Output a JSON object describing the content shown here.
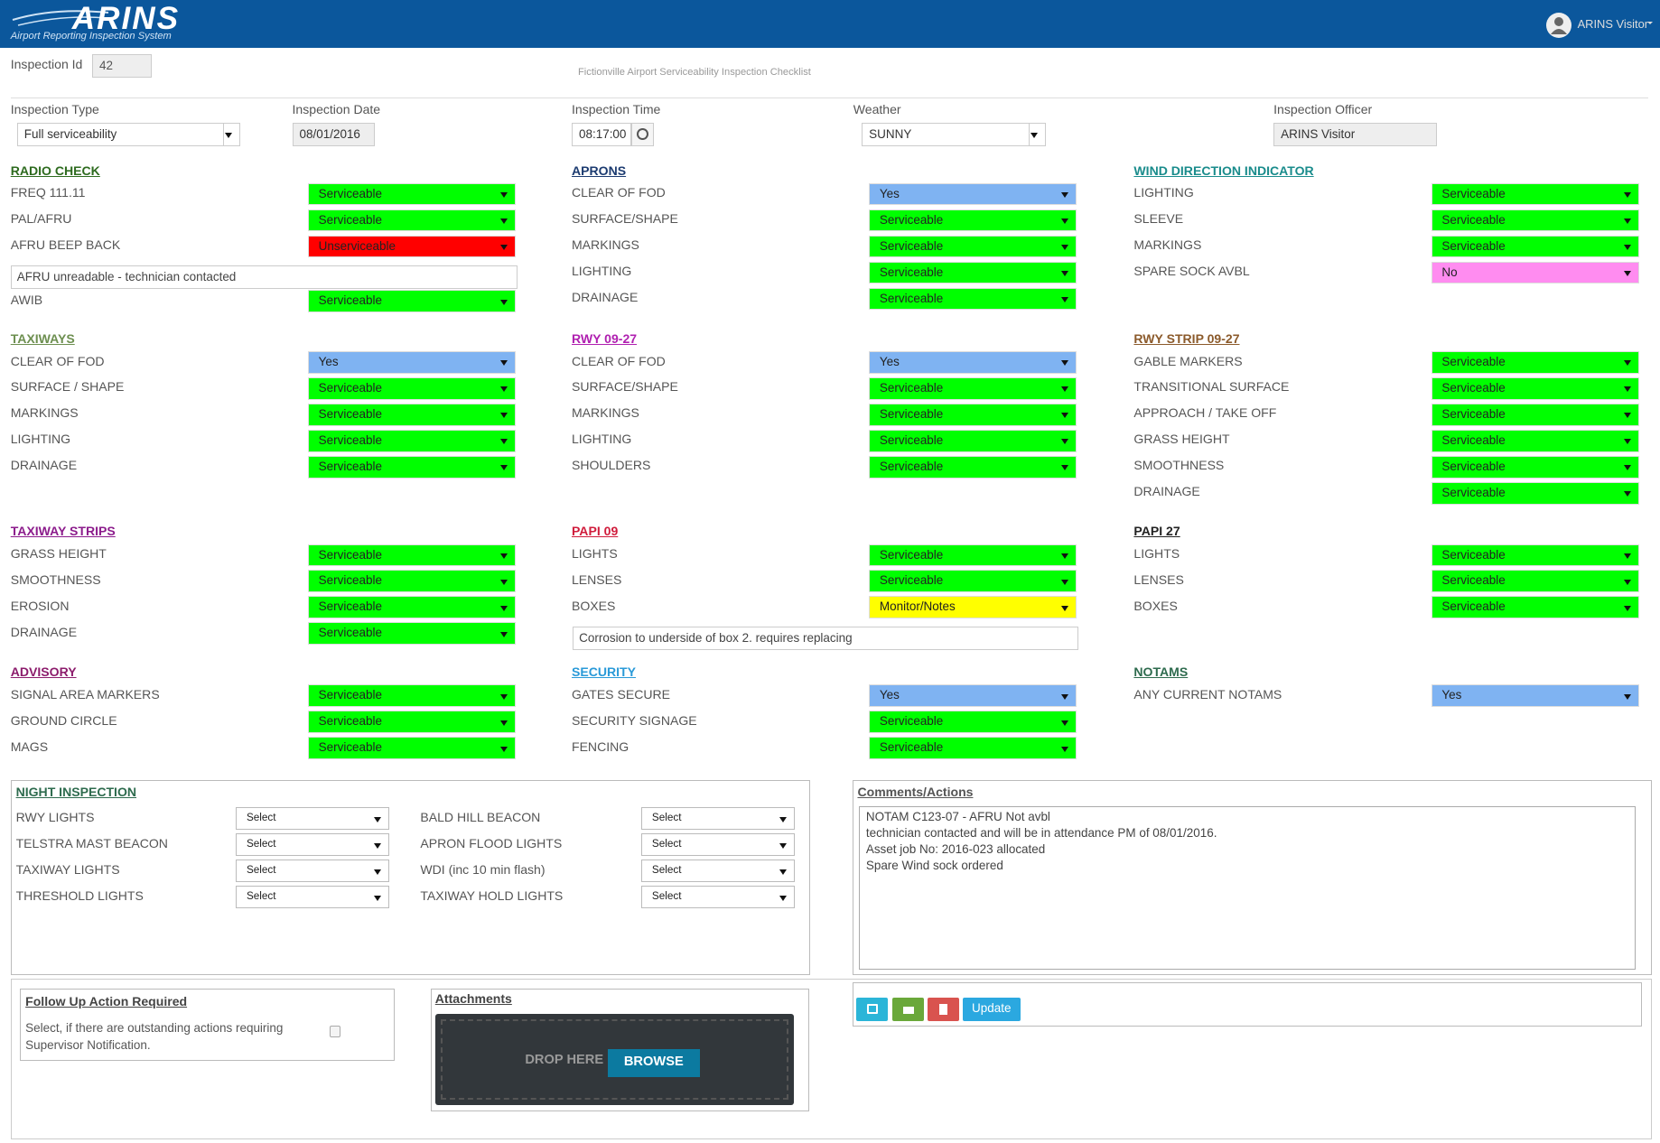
{
  "header": {
    "logo": "ARINS",
    "tagline": "Airport Reporting Inspection System",
    "user": "ARINS Visitor"
  },
  "form": {
    "title": "Fictionville Airport Serviceability Inspection Checklist",
    "id_label": "Inspection Id",
    "id_value": "42",
    "fields": [
      {
        "label": "Inspection Type",
        "value": "Full serviceability"
      },
      {
        "label": "Inspection Date",
        "value": "08/01/2016"
      },
      {
        "label": "Inspection Time",
        "value": "08:17:00"
      },
      {
        "label": "Weather",
        "value": "SUNNY"
      },
      {
        "label": "Inspection Officer",
        "value": "ARINS Visitor"
      }
    ]
  },
  "value_colors": {
    "Serviceable": "#00ff00",
    "Unserviceable": "#ff0000",
    "Yes": "#7fb3f2",
    "No": "#ff8cf0",
    "Monitor/Notes": "#ffff00"
  },
  "sections": [
    {
      "title": "RADIO CHECK",
      "color": "#2e6b1f",
      "items": [
        {
          "label": "FREQ 111.11",
          "value": "Serviceable"
        },
        {
          "label": "PAL/AFRU",
          "value": "Serviceable"
        },
        {
          "label": "AFRU BEEP BACK",
          "value": "Unserviceable"
        },
        {
          "note": "AFRU unreadable - technician contacted"
        },
        {
          "label": "AWIB",
          "value": "Serviceable"
        }
      ]
    },
    {
      "title": "APRONS",
      "color": "#1c3b70",
      "items": [
        {
          "label": "CLEAR OF FOD",
          "value": "Yes"
        },
        {
          "label": "SURFACE/SHAPE",
          "value": "Serviceable"
        },
        {
          "label": "MARKINGS",
          "value": "Serviceable"
        },
        {
          "label": "LIGHTING",
          "value": "Serviceable"
        },
        {
          "label": "DRAINAGE",
          "value": "Serviceable"
        }
      ]
    },
    {
      "title": "WIND DIRECTION INDICATOR",
      "color": "#1a8c8c",
      "items": [
        {
          "label": "LIGHTING",
          "value": "Serviceable"
        },
        {
          "label": "SLEEVE",
          "value": "Serviceable"
        },
        {
          "label": "MARKINGS",
          "value": "Serviceable"
        },
        {
          "label": "SPARE SOCK AVBL",
          "value": "No"
        }
      ]
    },
    {
      "title": "TAXIWAYS",
      "color": "#6d8f50",
      "items": [
        {
          "label": "CLEAR OF FOD",
          "value": "Yes"
        },
        {
          "label": "SURFACE / SHAPE",
          "value": "Serviceable"
        },
        {
          "label": "MARKINGS",
          "value": "Serviceable"
        },
        {
          "label": "LIGHTING",
          "value": "Serviceable"
        },
        {
          "label": "DRAINAGE",
          "value": "Serviceable"
        }
      ]
    },
    {
      "title": "RWY 09-27",
      "color": "#b020b0",
      "items": [
        {
          "label": "CLEAR OF FOD",
          "value": "Yes"
        },
        {
          "label": "SURFACE/SHAPE",
          "value": "Serviceable"
        },
        {
          "label": "MARKINGS",
          "value": "Serviceable"
        },
        {
          "label": "LIGHTING",
          "value": "Serviceable"
        },
        {
          "label": "SHOULDERS",
          "value": "Serviceable"
        }
      ]
    },
    {
      "title": "RWY STRIP 09-27",
      "color": "#8b5a2b",
      "items": [
        {
          "label": "GABLE MARKERS",
          "value": "Serviceable"
        },
        {
          "label": "TRANSITIONAL SURFACE",
          "value": "Serviceable"
        },
        {
          "label": "APPROACH / TAKE OFF",
          "value": "Serviceable"
        },
        {
          "label": "GRASS HEIGHT",
          "value": "Serviceable"
        },
        {
          "label": "SMOOTHNESS",
          "value": "Serviceable"
        },
        {
          "label": "DRAINAGE",
          "value": "Serviceable"
        }
      ]
    },
    {
      "title": "TAXIWAY STRIPS",
      "color": "#8c1c8c",
      "items": [
        {
          "label": "GRASS HEIGHT",
          "value": "Serviceable"
        },
        {
          "label": "SMOOTHNESS",
          "value": "Serviceable"
        },
        {
          "label": "EROSION",
          "value": "Serviceable"
        },
        {
          "label": "DRAINAGE",
          "value": "Serviceable"
        }
      ]
    },
    {
      "title": "PAPI 09",
      "color": "#d01c3c",
      "items": [
        {
          "label": "LIGHTS",
          "value": "Serviceable"
        },
        {
          "label": "LENSES",
          "value": "Serviceable"
        },
        {
          "label": "BOXES",
          "value": "Monitor/Notes"
        },
        {
          "note": "Corrosion to underside of box 2. requires replacing"
        }
      ]
    },
    {
      "title": "PAPI 27",
      "color": "#222222",
      "items": [
        {
          "label": "LIGHTS",
          "value": "Serviceable"
        },
        {
          "label": "LENSES",
          "value": "Serviceable"
        },
        {
          "label": "BOXES",
          "value": "Serviceable"
        }
      ]
    },
    {
      "title": "ADVISORY",
      "color": "#8c1c6c",
      "items": [
        {
          "label": "SIGNAL AREA MARKERS",
          "value": "Serviceable"
        },
        {
          "label": "GROUND CIRCLE",
          "value": "Serviceable"
        },
        {
          "label": "MAGS",
          "value": "Serviceable"
        }
      ]
    },
    {
      "title": "SECURITY",
      "color": "#2a9ad8",
      "items": [
        {
          "label": "GATES SECURE",
          "value": "Yes"
        },
        {
          "label": "SECURITY SIGNAGE",
          "value": "Serviceable"
        },
        {
          "label": "FENCING",
          "value": "Serviceable"
        }
      ]
    },
    {
      "title": "NOTAMS",
      "color": "#2e6b4e",
      "items": [
        {
          "label": "ANY CURRENT NOTAMS",
          "value": "Yes"
        }
      ]
    }
  ],
  "night_inspection": {
    "title": "NIGHT INSPECTION",
    "columns": [
      [
        {
          "label": "RWY LIGHTS",
          "value": "Select"
        },
        {
          "label": "TELSTRA MAST BEACON",
          "value": "Select"
        },
        {
          "label": "TAXIWAY LIGHTS",
          "value": "Select"
        },
        {
          "label": "THRESHOLD LIGHTS",
          "value": "Select"
        }
      ],
      [
        {
          "label": "BALD HILL BEACON",
          "value": "Select"
        },
        {
          "label": "APRON FLOOD LIGHTS",
          "value": "Select"
        },
        {
          "label": "WDI (inc 10 min flash)",
          "value": "Select"
        },
        {
          "label": "TAXIWAY HOLD LIGHTS",
          "value": "Select"
        }
      ]
    ]
  },
  "comments": {
    "title": "Comments/Actions",
    "lines": [
      "NOTAM C123-07 - AFRU Not avbl",
      "technician contacted and will be in attendance PM of 08/01/2016.",
      "Asset job No: 2016-023 allocated",
      "Spare Wind sock ordered"
    ]
  },
  "follow_up": {
    "title": "Follow Up Action Required",
    "lines": [
      "Select, if there are outstanding actions requiring",
      "Supervisor Notification."
    ]
  },
  "attachments": {
    "title": "Attachments",
    "drop": "DROP HERE",
    "button": "BROWSE"
  },
  "actions": {
    "update": "Update"
  }
}
